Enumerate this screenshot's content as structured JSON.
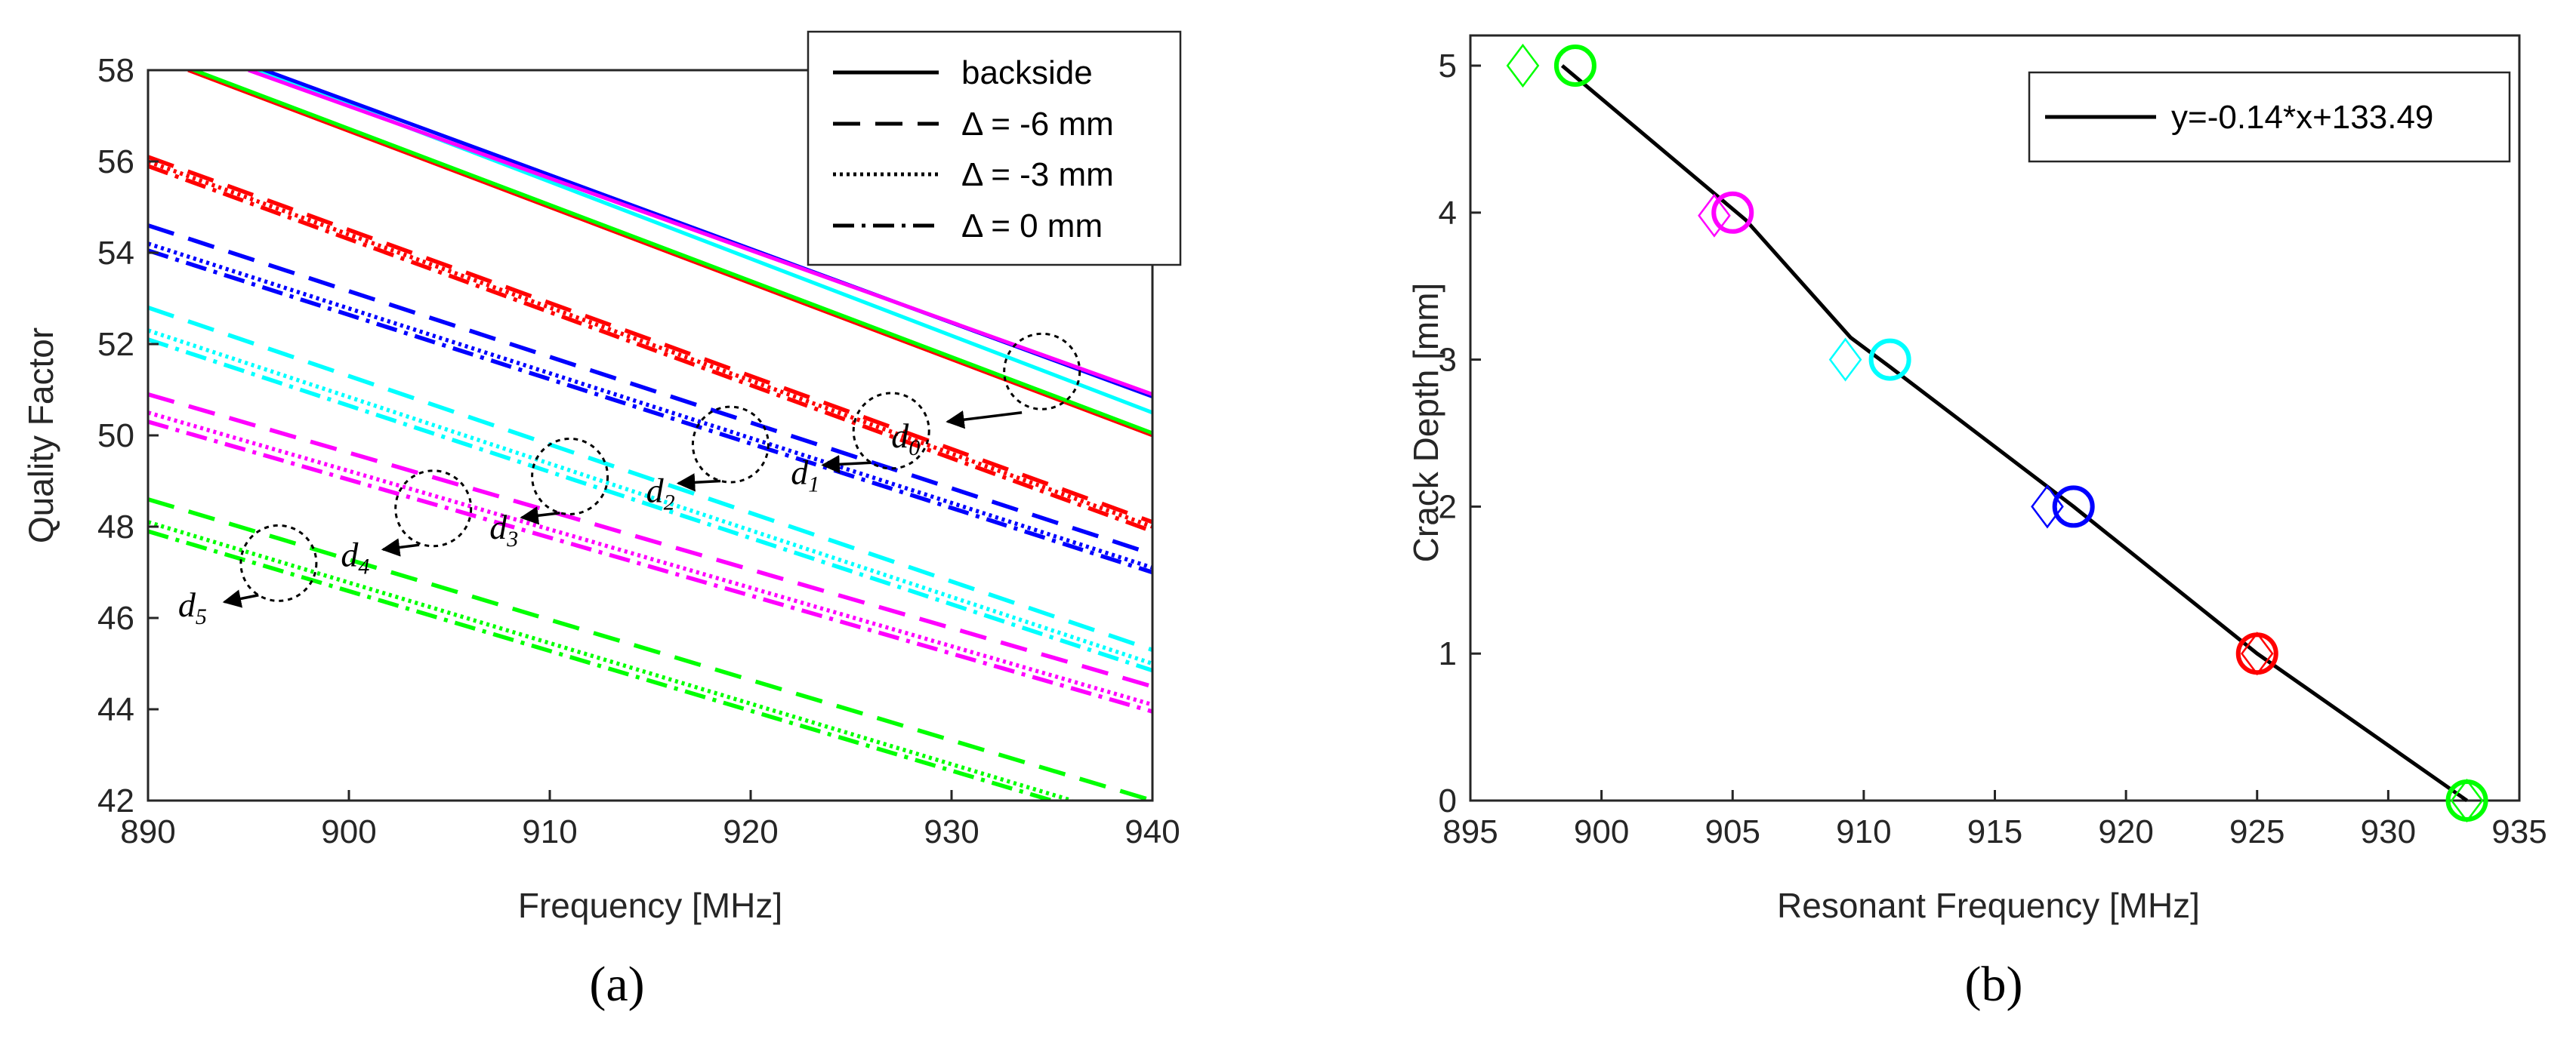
{
  "colors": {
    "black": "#000000",
    "red": "#ff0000",
    "green": "#00ff00",
    "blue": "#0000ff",
    "cyan": "#00ffff",
    "magenta": "#ff00ff"
  },
  "chart_data": [
    {
      "panel_label": "(a)",
      "type": "line",
      "xlabel": "Frequency [MHz]",
      "ylabel": "Quality Factor",
      "xlim": [
        890,
        940
      ],
      "ylim": [
        42,
        58
      ],
      "xticks": [
        890,
        900,
        910,
        920,
        930,
        940
      ],
      "yticks": [
        42,
        44,
        46,
        48,
        50,
        52,
        54,
        56,
        58
      ],
      "grid": false,
      "legend": {
        "position": "top-right",
        "entries": [
          {
            "label": "backside",
            "style": "solid"
          },
          {
            "label": "Δ = -6 mm",
            "style": "dashed"
          },
          {
            "label": "Δ = -3 mm",
            "style": "dotted"
          },
          {
            "label": "Δ = 0 mm",
            "style": "dashdot"
          }
        ]
      },
      "series": [
        {
          "group": "d0",
          "style": "solid",
          "color": "#ff0000",
          "x": [
            892,
            940
          ],
          "y": [
            58.0,
            50.0
          ]
        },
        {
          "group": "d0",
          "style": "solid",
          "color": "#00ff00",
          "x": [
            892,
            940
          ],
          "y": [
            58.05,
            50.05
          ]
        },
        {
          "group": "d0",
          "style": "solid",
          "color": "#00ffff",
          "x": [
            895.5,
            940
          ],
          "y": [
            58.0,
            50.5
          ]
        },
        {
          "group": "d0",
          "style": "solid",
          "color": "#0000ff",
          "x": [
            895.5,
            940
          ],
          "y": [
            58.05,
            50.85
          ]
        },
        {
          "group": "d0",
          "style": "solid",
          "color": "#ff00ff",
          "x": [
            895,
            940
          ],
          "y": [
            58.0,
            50.9
          ]
        },
        {
          "group": "d1",
          "style": "dashed",
          "color": "#ff0000",
          "x": [
            890,
            940
          ],
          "y": [
            56.1,
            48.1
          ]
        },
        {
          "group": "d1",
          "style": "dotted",
          "color": "#ff0000",
          "x": [
            890,
            940
          ],
          "y": [
            56.0,
            48.0
          ]
        },
        {
          "group": "d1",
          "style": "dashdot",
          "color": "#ff0000",
          "x": [
            890,
            940
          ],
          "y": [
            55.9,
            47.9
          ]
        },
        {
          "group": "d2",
          "style": "dashed",
          "color": "#0000ff",
          "x": [
            890,
            940
          ],
          "y": [
            54.6,
            47.4
          ]
        },
        {
          "group": "d2",
          "style": "dotted",
          "color": "#0000ff",
          "x": [
            890,
            940
          ],
          "y": [
            54.2,
            47.1
          ]
        },
        {
          "group": "d2",
          "style": "dashdot",
          "color": "#0000ff",
          "x": [
            890,
            940
          ],
          "y": [
            54.05,
            47.0
          ]
        },
        {
          "group": "d3",
          "style": "dashed",
          "color": "#00ffff",
          "x": [
            890,
            940
          ],
          "y": [
            52.8,
            45.3
          ]
        },
        {
          "group": "d3",
          "style": "dotted",
          "color": "#00ffff",
          "x": [
            890,
            940
          ],
          "y": [
            52.3,
            45.0
          ]
        },
        {
          "group": "d3",
          "style": "dashdot",
          "color": "#00ffff",
          "x": [
            890,
            940
          ],
          "y": [
            52.1,
            44.85
          ]
        },
        {
          "group": "d4",
          "style": "dashed",
          "color": "#ff00ff",
          "x": [
            890,
            940
          ],
          "y": [
            50.9,
            44.5
          ]
        },
        {
          "group": "d4",
          "style": "dotted",
          "color": "#ff00ff",
          "x": [
            890,
            940
          ],
          "y": [
            50.5,
            44.1
          ]
        },
        {
          "group": "d4",
          "style": "dashdot",
          "color": "#ff00ff",
          "x": [
            890,
            940
          ],
          "y": [
            50.3,
            43.95
          ]
        },
        {
          "group": "d5",
          "style": "dashed",
          "color": "#00ff00",
          "x": [
            890,
            940
          ],
          "y": [
            48.6,
            42.0
          ]
        },
        {
          "group": "d5",
          "style": "dotted",
          "color": "#00ff00",
          "x": [
            890,
            936
          ],
          "y": [
            48.1,
            42.0
          ]
        },
        {
          "group": "d5",
          "style": "dashdot",
          "color": "#00ff00",
          "x": [
            890,
            935
          ],
          "y": [
            47.9,
            42.0
          ]
        }
      ],
      "annotations": [
        {
          "base": "d",
          "sub": "0",
          "circle": [
            934.5,
            51.4
          ],
          "text": [
            927,
            50.0
          ],
          "arrow_from": [
            933.5,
            50.5
          ],
          "arrow_to": [
            929.8,
            50.3
          ]
        },
        {
          "base": "d",
          "sub": "1",
          "circle": [
            927,
            50.1
          ],
          "text": [
            922,
            49.2
          ],
          "arrow_from": [
            926,
            49.4
          ],
          "arrow_to": [
            923.6,
            49.35
          ]
        },
        {
          "base": "d",
          "sub": "2",
          "circle": [
            919,
            49.8
          ],
          "text": [
            914.8,
            48.8
          ],
          "arrow_from": [
            918.5,
            49.0
          ],
          "arrow_to": [
            916.4,
            48.95
          ]
        },
        {
          "base": "d",
          "sub": "3",
          "circle": [
            911,
            49.1
          ],
          "text": [
            907,
            48.0
          ],
          "arrow_from": [
            910.5,
            48.3
          ],
          "arrow_to": [
            908.6,
            48.2
          ]
        },
        {
          "base": "d",
          "sub": "4",
          "circle": [
            904.2,
            48.4
          ],
          "text": [
            899.6,
            47.4
          ],
          "arrow_from": [
            903.5,
            47.6
          ],
          "arrow_to": [
            901.7,
            47.5
          ]
        },
        {
          "base": "d",
          "sub": "5",
          "circle": [
            896.5,
            47.2
          ],
          "text": [
            891.5,
            46.3
          ],
          "arrow_from": [
            895.5,
            46.5
          ],
          "arrow_to": [
            893.8,
            46.35
          ]
        }
      ]
    },
    {
      "panel_label": "(b)",
      "type": "scatter",
      "xlabel": "Resonant Frequency [MHz]",
      "ylabel": "Crack Depth [mm]",
      "xlim": [
        895,
        935
      ],
      "ylim": [
        0,
        5
      ],
      "xticks": [
        895,
        900,
        905,
        910,
        915,
        920,
        925,
        930,
        935
      ],
      "yticks": [
        0,
        1,
        2,
        3,
        4,
        5
      ],
      "grid": false,
      "legend": {
        "position": "top-right",
        "entries": [
          {
            "label": "y=-0.14*x+133.49",
            "style": "solid"
          }
        ]
      },
      "fit_line": {
        "x": [
          898.5,
          905.5,
          909.5,
          911,
          918,
          925,
          933
        ],
        "y": [
          5.0,
          3.95,
          3.15,
          2.95,
          2.0,
          1.0,
          0.0
        ]
      },
      "series": [
        {
          "name": "",
          "marker": "circle",
          "points": [
            {
              "x": 899,
              "y": 5,
              "color": "#00ff00"
            },
            {
              "x": 905,
              "y": 4,
              "color": "#ff00ff"
            },
            {
              "x": 911,
              "y": 3,
              "color": "#00ffff"
            },
            {
              "x": 918,
              "y": 2,
              "color": "#0000ff"
            },
            {
              "x": 925,
              "y": 1,
              "color": "#ff0000"
            },
            {
              "x": 933,
              "y": 0,
              "color": "#00ff00"
            }
          ]
        },
        {
          "name": "",
          "marker": "diamond",
          "points": [
            {
              "x": 897,
              "y": 5,
              "color": "#00ff00"
            },
            {
              "x": 904.3,
              "y": 3.98,
              "color": "#ff00ff"
            },
            {
              "x": 909.3,
              "y": 3.0,
              "color": "#00ffff"
            },
            {
              "x": 917,
              "y": 2.0,
              "color": "#0000ff"
            },
            {
              "x": 925,
              "y": 1.0,
              "color": "#ff0000"
            },
            {
              "x": 933,
              "y": 0.0,
              "color": "#00ff00"
            }
          ]
        }
      ]
    }
  ]
}
